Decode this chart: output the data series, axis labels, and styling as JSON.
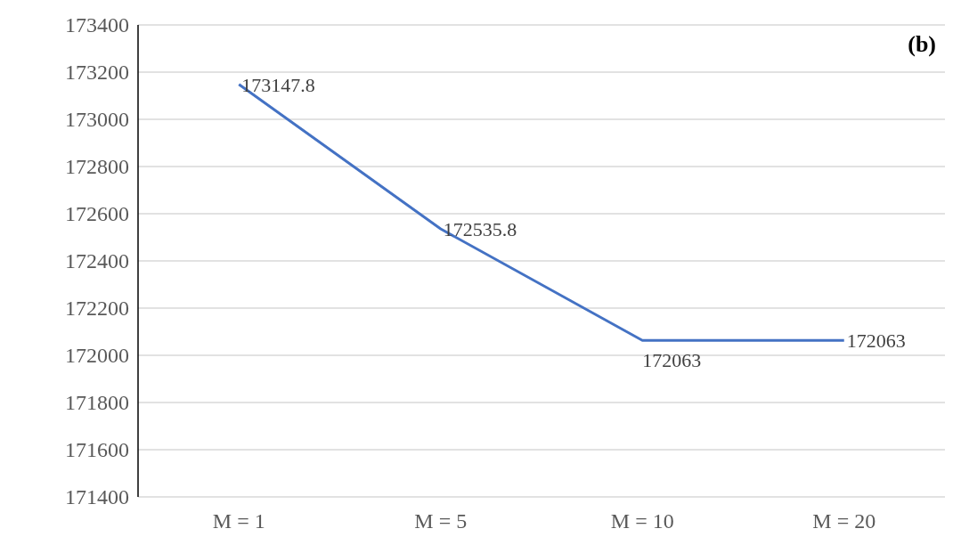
{
  "chart_data": {
    "type": "line",
    "categories": [
      "M = 1",
      "M = 5",
      "M = 10",
      "M = 20"
    ],
    "series": [
      {
        "color": "#4472c4",
        "values": [
          173147.8,
          172535.8,
          172063,
          172063
        ]
      }
    ],
    "ylim": [
      171400,
      173400
    ],
    "yticks": [
      171400,
      171600,
      171800,
      172000,
      172200,
      172400,
      172600,
      172800,
      173000,
      173200,
      173400
    ],
    "grid": "y",
    "data_labels": true,
    "marker": "none",
    "annotations": [
      {
        "text": "(b)"
      }
    ]
  }
}
